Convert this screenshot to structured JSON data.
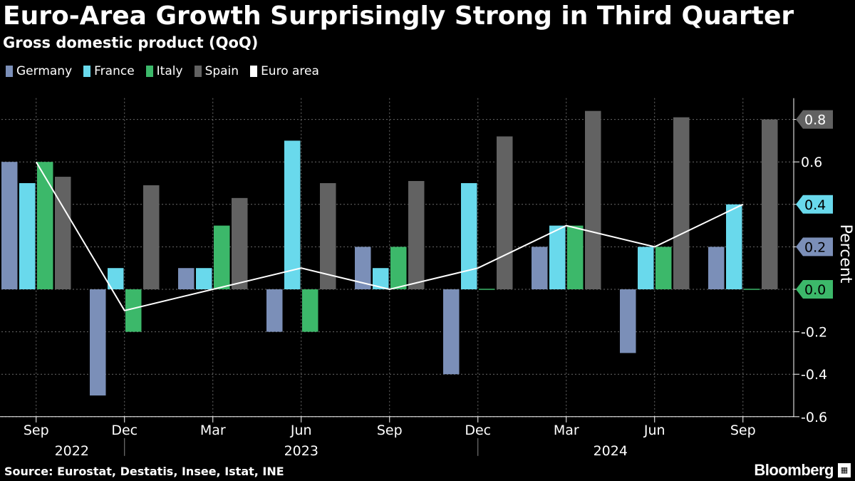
{
  "header": {
    "title": "Euro-Area Growth Surprisingly Strong in Third Quarter",
    "subtitle": "Gross domestic product (QoQ)"
  },
  "footer": {
    "source": "Source: Eurostat, Destatis, Insee, Istat, INE",
    "brand": "Bloomberg",
    "brand_icon": "bloomberg-terminal-icon"
  },
  "colors": {
    "germany": "#7b8fb8",
    "france": "#69d9ec",
    "italy": "#3cb86a",
    "spain": "#626262",
    "euro": "#ffffff",
    "grid": "#6a6a6a"
  },
  "chart_data": {
    "type": "bar",
    "title": "Euro-Area Growth Surprisingly Strong in Third Quarter",
    "subtitle": "Gross domestic product (QoQ)",
    "ylabel": "Percent",
    "ylim": [
      -0.6,
      0.9
    ],
    "yticks": [
      "0.6",
      "-0.2",
      "-0.4",
      "-0.6"
    ],
    "categories": [
      "Sep 2022",
      "Dec 2022",
      "Mar 2023",
      "Jun 2023",
      "Sep 2023",
      "Dec 2023",
      "Mar 2024",
      "Jun 2024",
      "Sep 2024"
    ],
    "month_labels": [
      "Sep",
      "Dec",
      "Mar",
      "Jun",
      "Sep",
      "Dec",
      "Mar",
      "Jun",
      "Sep"
    ],
    "year_labels": [
      {
        "label": "2022",
        "start": 0,
        "end": 1
      },
      {
        "label": "2023",
        "start": 1,
        "end": 5
      },
      {
        "label": "2024",
        "start": 5,
        "end": 8
      }
    ],
    "series": [
      {
        "name": "Germany",
        "type": "bar",
        "values": [
          0.6,
          -0.5,
          0.1,
          -0.2,
          0.2,
          -0.4,
          0.2,
          -0.3,
          0.2
        ]
      },
      {
        "name": "France",
        "type": "bar",
        "values": [
          0.5,
          0.1,
          0.1,
          0.7,
          0.1,
          0.5,
          0.3,
          0.2,
          0.4
        ]
      },
      {
        "name": "Italy",
        "type": "bar",
        "values": [
          0.6,
          -0.2,
          0.3,
          -0.2,
          0.2,
          0.0,
          0.3,
          0.2,
          0.0
        ]
      },
      {
        "name": "Spain",
        "type": "bar",
        "values": [
          0.53,
          0.49,
          0.43,
          0.5,
          0.51,
          0.72,
          0.84,
          0.81,
          0.8
        ]
      },
      {
        "name": "Euro area",
        "type": "line",
        "values": [
          0.6,
          -0.1,
          0.0,
          0.1,
          0.0,
          0.1,
          0.3,
          0.2,
          0.4
        ]
      }
    ],
    "end_labels": [
      {
        "series": "Spain",
        "text": "0.8",
        "value": 0.8
      },
      {
        "series": "France",
        "text": "0.4",
        "value": 0.4
      },
      {
        "series": "Germany",
        "text": "0.2",
        "value": 0.2
      },
      {
        "series": "Italy",
        "text": "0.0",
        "value": 0.0
      }
    ]
  }
}
